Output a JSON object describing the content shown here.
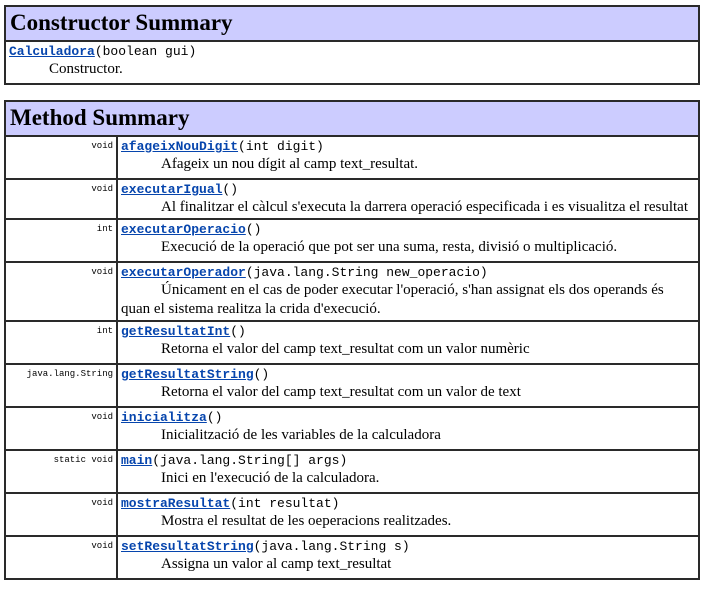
{
  "constructor_summary": {
    "title": "Constructor Summary",
    "name": "Calculadora",
    "params": "(boolean gui)",
    "description": "Constructor."
  },
  "method_summary": {
    "title": "Method Summary",
    "methods": [
      {
        "type": "void",
        "name": "afageixNouDigit",
        "params": "(int digit)",
        "description": "Afageix un nou dígit al camp text_resultat."
      },
      {
        "type": "void",
        "name": "executarIgual",
        "params": "()",
        "description": "Al finalitzar el càlcul s'executa la darrera operació especificada i es visualitza el resultat"
      },
      {
        "type": "int",
        "name": "executarOperacio",
        "params": "()",
        "description": "Execució de la operació que pot ser una suma, resta, divisió o multiplicació."
      },
      {
        "type": "void",
        "name": "executarOperador",
        "params": "(java.lang.String new_operacio)",
        "description": "Únicament en el cas de poder executar l'operació, s'han assignat els dos operands és quan el sistema realitza la crida d'execució."
      },
      {
        "type": "int",
        "name": "getResultatInt",
        "params": "()",
        "description": "Retorna el valor del camp text_resultat com un valor numèric"
      },
      {
        "type": "java.lang.String",
        "name": "getResultatString",
        "params": "()",
        "description": "Retorna el valor del camp text_resultat com un valor de text"
      },
      {
        "type": "void",
        "name": "inicialitza",
        "params": "()",
        "description": "Inicialització de les variables de la calculadora"
      },
      {
        "type": "static void",
        "name": "main",
        "params": "(java.lang.String[] args)",
        "description": "Inici en l'execució de la calculadora."
      },
      {
        "type": "void",
        "name": "mostraResultat",
        "params": "(int resultat)",
        "description": "Mostra el resultat de les oeperacions realitzades."
      },
      {
        "type": "void",
        "name": "setResultatString",
        "params": "(java.lang.String s)",
        "description": "Assigna un valor al camp text_resultat"
      }
    ]
  }
}
